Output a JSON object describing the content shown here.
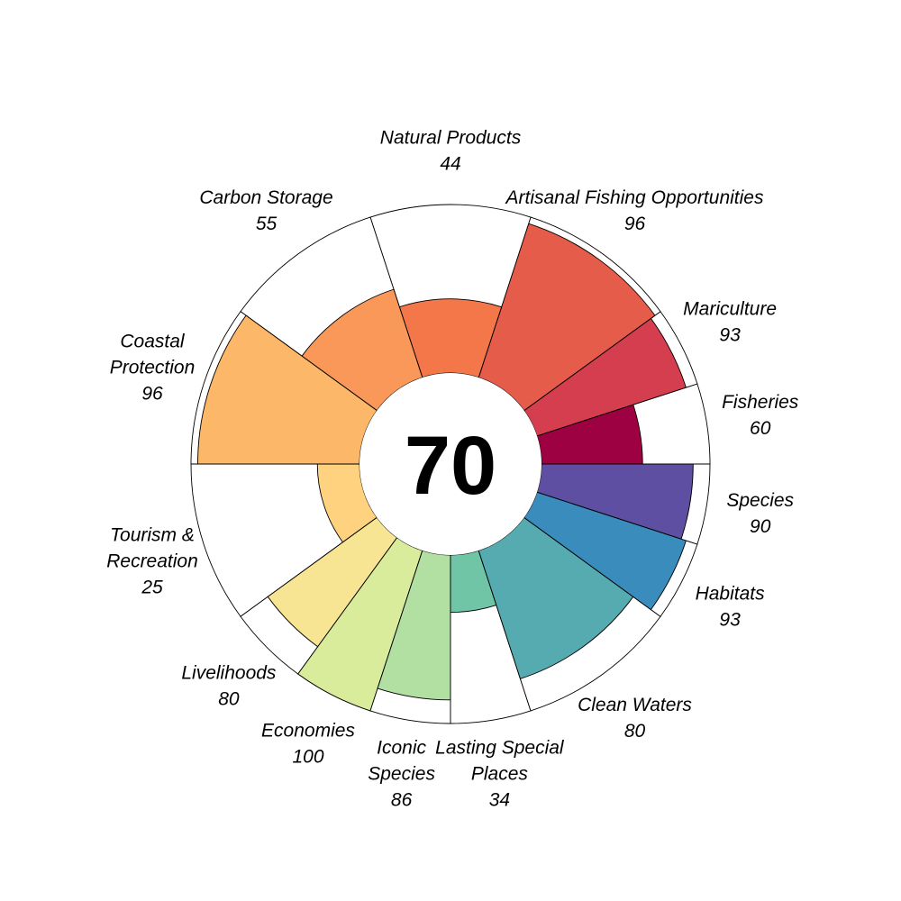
{
  "chart_data": {
    "type": "flower",
    "center_score": "70",
    "petals": [
      {
        "name": "Fisheries",
        "label_lines": [
          "Fisheries"
        ],
        "value": 60,
        "weight": 0.5,
        "color": "#9e0142"
      },
      {
        "name": "Mariculture",
        "label_lines": [
          "Mariculture"
        ],
        "value": 93,
        "weight": 0.5,
        "color": "#d53e4f"
      },
      {
        "name": "Artisanal Fishing Opportunities",
        "label_lines": [
          "Artisanal Fishing Opportunities"
        ],
        "value": 96,
        "weight": 1,
        "color": "#e55c4b"
      },
      {
        "name": "Natural Products",
        "label_lines": [
          "Natural Products"
        ],
        "value": 44,
        "weight": 1,
        "color": "#f4774a"
      },
      {
        "name": "Carbon Storage",
        "label_lines": [
          "Carbon Storage"
        ],
        "value": 55,
        "weight": 1,
        "color": "#f99858"
      },
      {
        "name": "Coastal Protection",
        "label_lines": [
          "Coastal",
          "Protection"
        ],
        "value": 96,
        "weight": 1,
        "color": "#fdb768"
      },
      {
        "name": "Tourism & Recreation",
        "label_lines": [
          "Tourism &",
          "Recreation"
        ],
        "value": 25,
        "weight": 1,
        "color": "#fed27f"
      },
      {
        "name": "Livelihoods",
        "label_lines": [
          "Livelihoods"
        ],
        "value": 80,
        "weight": 0.5,
        "color": "#f8e593"
      },
      {
        "name": "Economies",
        "label_lines": [
          "Economies"
        ],
        "value": 100,
        "weight": 0.5,
        "color": "#d8ec9b"
      },
      {
        "name": "Iconic Species",
        "label_lines": [
          "Iconic",
          "Species"
        ],
        "value": 86,
        "weight": 0.5,
        "color": "#b2e0a2"
      },
      {
        "name": "Lasting Special Places",
        "label_lines": [
          "Lasting Special",
          "Places"
        ],
        "value": 34,
        "weight": 0.5,
        "color": "#6fc5a5"
      },
      {
        "name": "Clean Waters",
        "label_lines": [
          "Clean Waters"
        ],
        "value": 80,
        "weight": 1,
        "color": "#56abb0"
      },
      {
        "name": "Habitats",
        "label_lines": [
          "Habitats"
        ],
        "value": 93,
        "weight": 0.5,
        "color": "#3a8cbc"
      },
      {
        "name": "Species",
        "label_lines": [
          "Species"
        ],
        "value": 90,
        "weight": 0.5,
        "color": "#5e4fa2"
      }
    ],
    "scale_max": 100,
    "start_angle": "east, counterclockwise"
  }
}
